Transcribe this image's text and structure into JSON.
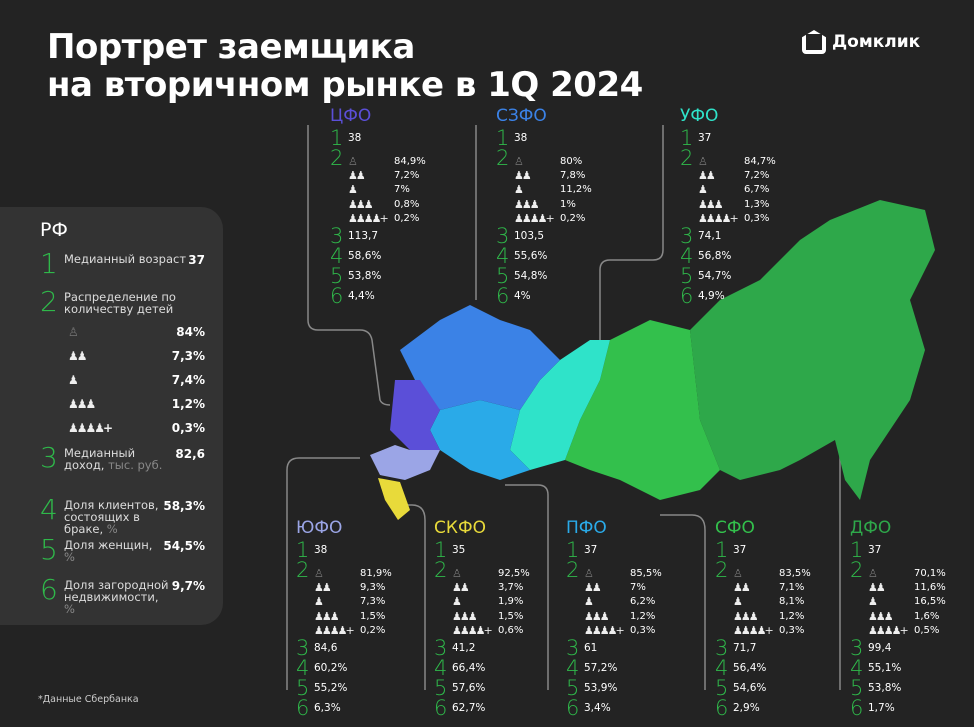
{
  "title_line1": "Портрет заемщика",
  "title_line2": "на вторичном рынке в 1Q 2024",
  "logo": "Домклик",
  "footnote": "*Данные Сбербанка",
  "children_icons": [
    "person-no-children-icon",
    "two-children-icon",
    "one-child-icon",
    "three-children-icon",
    "four-plus-children-icon"
  ],
  "colors": {
    "accent_green": "#2fb84a",
    "background": "#232323",
    "panel": "#333333"
  },
  "rf": {
    "title": "РФ",
    "metrics": [
      {
        "num": "1",
        "label": "Медианный возраст",
        "unit": "",
        "value": "37"
      },
      {
        "num": "2",
        "label": "Распределение по количеству детей",
        "unit": "",
        "value": ""
      },
      {
        "num": "3",
        "label": "Медианный доход,",
        "unit": "тыс. руб.",
        "value": "82,6"
      },
      {
        "num": "4",
        "label": "Доля клиентов, состоящих в браке,",
        "unit": "%",
        "value": "58,3%"
      },
      {
        "num": "5",
        "label": "Доля женщин,",
        "unit": "%",
        "value": "54,5%"
      },
      {
        "num": "6",
        "label": "Доля загородной недвижимости,",
        "unit": "%",
        "value": "9,7%"
      }
    ],
    "children": [
      "84%",
      "7,3%",
      "7,4%",
      "1,2%",
      "0,3%"
    ]
  },
  "regions": [
    {
      "name": "ЦФО",
      "color": "#5b4fd8",
      "age": "38",
      "children": [
        "84,9%",
        "7,2%",
        "7%",
        "0,8%",
        "0,2%"
      ],
      "income": "113,7",
      "married": "58,6%",
      "women": "53,8%",
      "country": "4,4%"
    },
    {
      "name": "СЗФО",
      "color": "#3b82e6",
      "age": "38",
      "children": [
        "80%",
        "7,8%",
        "11,2%",
        "1%",
        "0,2%"
      ],
      "income": "103,5",
      "married": "55,6%",
      "women": "54,8%",
      "country": "4%"
    },
    {
      "name": "УФО",
      "color": "#2fe3c9",
      "age": "37",
      "children": [
        "84,7%",
        "7,2%",
        "6,7%",
        "1,3%",
        "0,3%"
      ],
      "income": "74,1",
      "married": "56,8%",
      "women": "54,7%",
      "country": "4,9%"
    },
    {
      "name": "ЮФО",
      "color": "#9ba5e6",
      "age": "38",
      "children": [
        "81,9%",
        "9,3%",
        "7,3%",
        "1,5%",
        "0,2%"
      ],
      "income": "84,6",
      "married": "60,2%",
      "women": "55,2%",
      "country": "6,3%"
    },
    {
      "name": "СКФО",
      "color": "#e8da3a",
      "age": "35",
      "children": [
        "92,5%",
        "3,7%",
        "1,9%",
        "1,5%",
        "0,6%"
      ],
      "income": "41,2",
      "married": "66,4%",
      "women": "57,6%",
      "country": "62,7%"
    },
    {
      "name": "ПФО",
      "color": "#2aaae8",
      "age": "37",
      "children": [
        "85,5%",
        "7%",
        "6,2%",
        "1,2%",
        "0,3%"
      ],
      "income": "61",
      "married": "57,2%",
      "women": "53,9%",
      "country": "3,4%"
    },
    {
      "name": "СФО",
      "color": "#33c04c",
      "age": "37",
      "children": [
        "83,5%",
        "7,1%",
        "8,1%",
        "1,2%",
        "0,3%"
      ],
      "income": "71,7",
      "married": "56,4%",
      "women": "54,6%",
      "country": "2,9%"
    },
    {
      "name": "ДФО",
      "color": "#2ea84a",
      "age": "37",
      "children": [
        "70,1%",
        "11,6%",
        "16,5%",
        "1,6%",
        "0,5%"
      ],
      "income": "99,4",
      "married": "55,1%",
      "women": "53,8%",
      "country": "1,7%"
    }
  ]
}
